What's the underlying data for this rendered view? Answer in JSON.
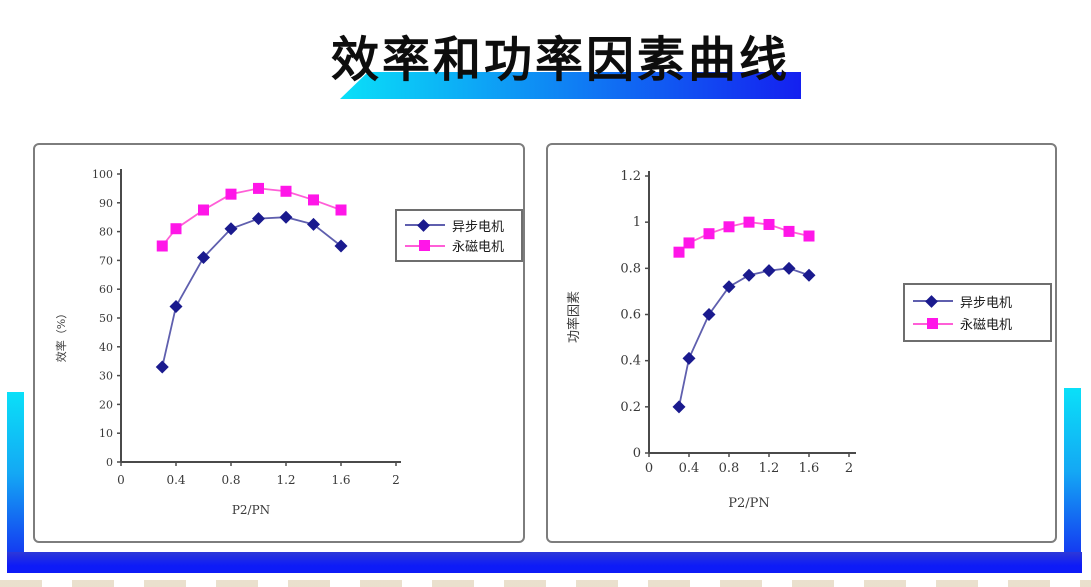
{
  "slide": {
    "title": "效率和功率因素曲线"
  },
  "decor": {
    "accent_cyan": "#0ae0f8",
    "accent_mid": "#14a8f4",
    "accent_blue": "#1420f0",
    "bottom_bar_top": "#2d38d8",
    "bottom_bar_bottom": "#0d1bf7"
  },
  "chart_data": [
    {
      "type": "line",
      "title": "",
      "xlabel": "P2/PN",
      "ylabel": "效率（%）",
      "xlim": [
        0,
        2
      ],
      "ylim": [
        0,
        100
      ],
      "xticks": [
        0,
        0.4,
        0.8,
        1.2,
        1.6,
        2
      ],
      "xtick_labels": [
        "0",
        "0.4",
        "0.8",
        "1.2",
        "1.6",
        "2"
      ],
      "yticks": [
        0,
        10,
        20,
        30,
        40,
        50,
        60,
        70,
        80,
        90,
        100
      ],
      "ytick_labels": [
        "0",
        "10",
        "20",
        "30",
        "40",
        "50",
        "60",
        "70",
        "80",
        "90",
        "100"
      ],
      "grid": false,
      "legend_position": "right",
      "x": [
        0.3,
        0.4,
        0.6,
        0.8,
        1.0,
        1.2,
        1.4,
        1.6
      ],
      "series": [
        {
          "name": "异步电机",
          "marker": "diamond",
          "line_color": "#5f5fae",
          "marker_color": "#1a1a8e",
          "values": [
            33,
            54,
            71,
            81,
            84.5,
            85,
            82.5,
            75
          ]
        },
        {
          "name": "永磁电机",
          "marker": "square",
          "line_color": "#ff5fd7",
          "marker_color": "#ff16e8",
          "values": [
            75,
            81,
            87.5,
            93,
            95,
            94,
            91,
            87.5
          ]
        }
      ]
    },
    {
      "type": "line",
      "title": "",
      "xlabel": "P2/PN",
      "ylabel": "功率因素",
      "xlim": [
        0,
        2
      ],
      "ylim": [
        0,
        1.2
      ],
      "xticks": [
        0,
        0.4,
        0.8,
        1.2,
        1.6,
        2
      ],
      "xtick_labels": [
        "0",
        "0.4",
        "0.8",
        "1.2",
        "1.6",
        "2"
      ],
      "yticks": [
        0,
        0.2,
        0.4,
        0.6,
        0.8,
        1,
        1.2
      ],
      "ytick_labels": [
        "0",
        "0.2",
        "0.4",
        "0.6",
        "0.8",
        "1",
        "1.2"
      ],
      "grid": false,
      "legend_position": "right",
      "x": [
        0.3,
        0.4,
        0.6,
        0.8,
        1.0,
        1.2,
        1.4,
        1.6
      ],
      "series": [
        {
          "name": "异步电机",
          "marker": "diamond",
          "line_color": "#5f5fae",
          "marker_color": "#1a1a8e",
          "values": [
            0.2,
            0.41,
            0.6,
            0.72,
            0.77,
            0.79,
            0.8,
            0.77
          ]
        },
        {
          "name": "永磁电机",
          "marker": "square",
          "line_color": "#ff5fd7",
          "marker_color": "#ff16e8",
          "values": [
            0.87,
            0.91,
            0.95,
            0.98,
            1.0,
            0.99,
            0.96,
            0.94
          ]
        }
      ]
    }
  ]
}
